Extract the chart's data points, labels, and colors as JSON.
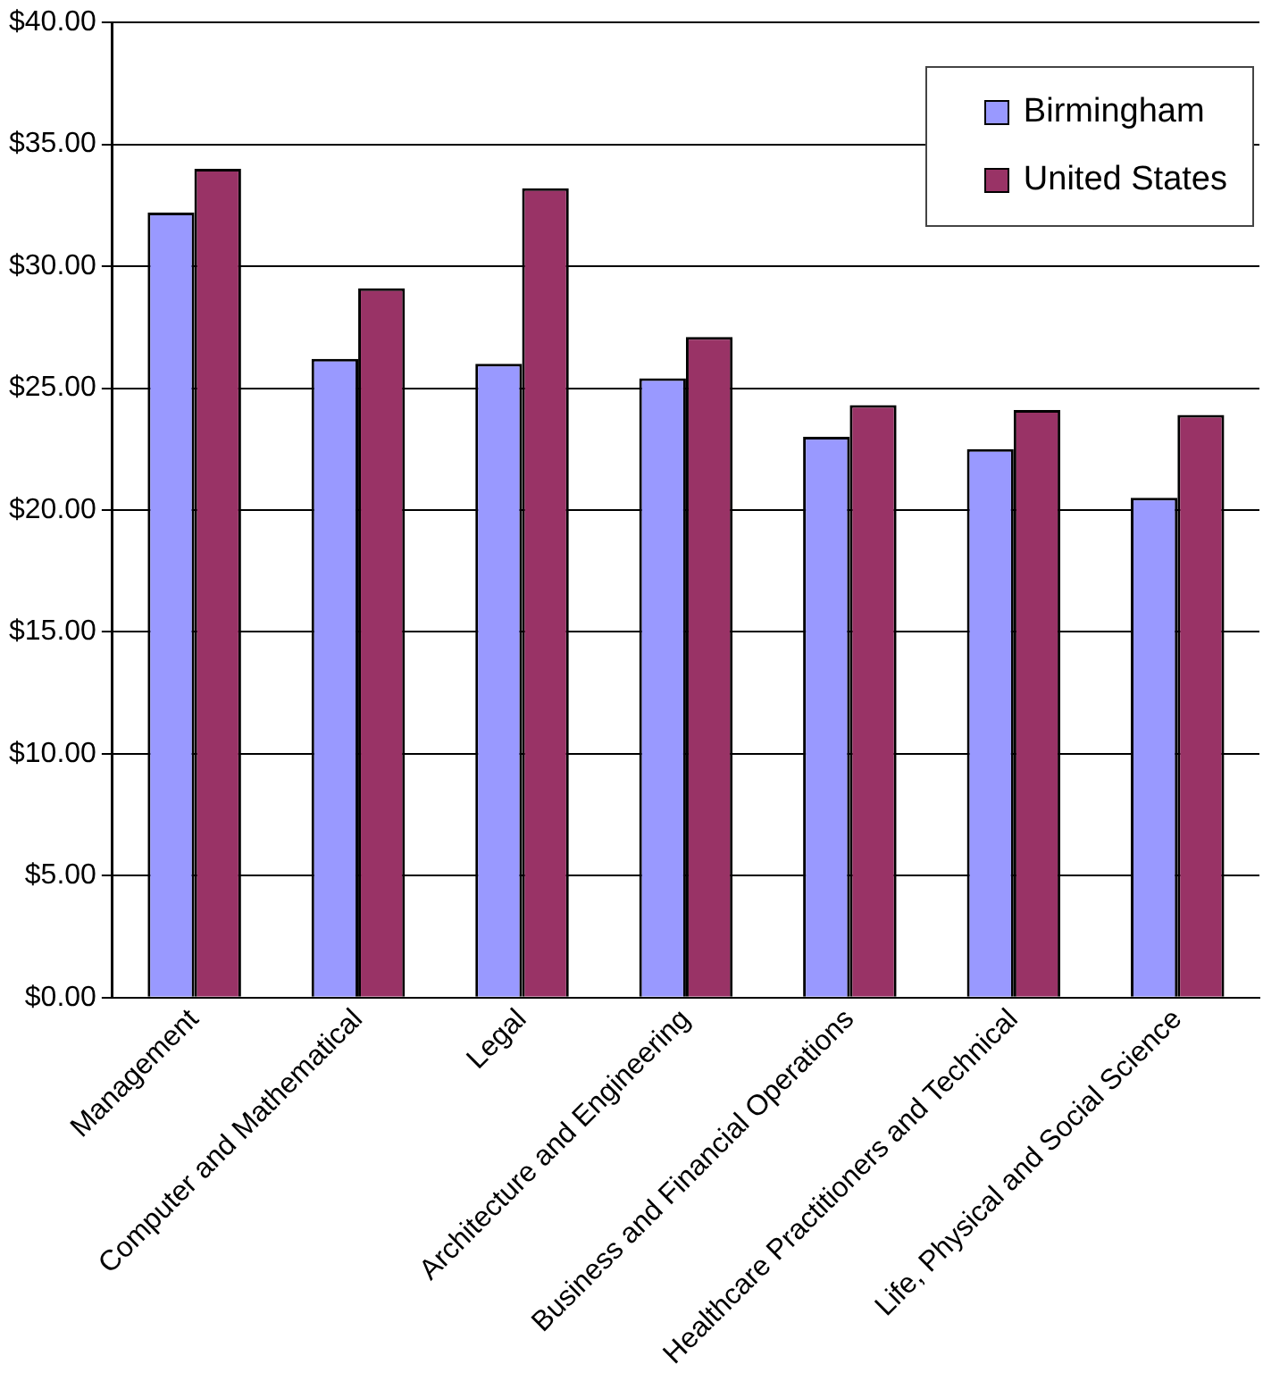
{
  "chart_data": {
    "type": "bar",
    "categories": [
      "Management",
      "Computer and Mathematical",
      "Legal",
      "Architecture and Engineering",
      "Business and Financial Operations",
      "Healthcare Practitioners and Technical",
      "Life, Physical and Social Science"
    ],
    "series": [
      {
        "name": "Birmingham",
        "color": "#9999ff",
        "values": [
          32.2,
          26.2,
          26.0,
          25.4,
          23.0,
          22.5,
          20.5
        ]
      },
      {
        "name": "United States",
        "color": "#993366",
        "values": [
          34.0,
          29.1,
          33.2,
          27.1,
          24.3,
          24.1,
          23.9
        ]
      }
    ],
    "ylim": [
      0,
      40
    ],
    "yticks": [
      {
        "value": 0,
        "label": "$0.00"
      },
      {
        "value": 5,
        "label": "$5.00"
      },
      {
        "value": 10,
        "label": "$10.00"
      },
      {
        "value": 15,
        "label": "$15.00"
      },
      {
        "value": 20,
        "label": "$20.00"
      },
      {
        "value": 25,
        "label": "$25.00"
      },
      {
        "value": 30,
        "label": "$30.00"
      },
      {
        "value": 35,
        "label": "$35.00"
      },
      {
        "value": 40,
        "label": "$40.00"
      }
    ],
    "grid": "y",
    "legend": "top right"
  }
}
